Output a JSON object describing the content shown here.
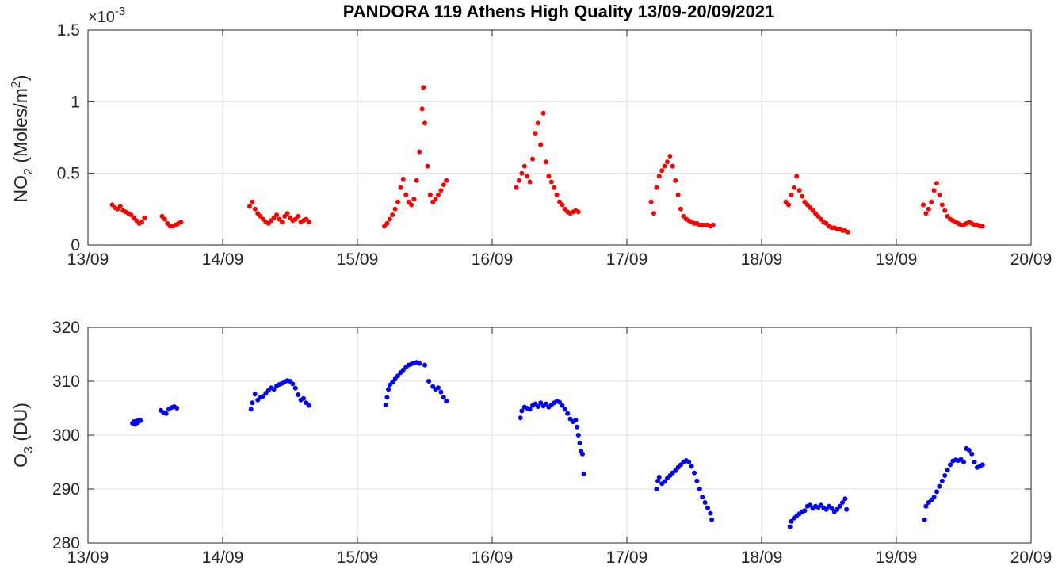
{
  "figure": {
    "title": "PANDORA 119 Athens High Quality 13/09-20/09/2021"
  },
  "chart_data": [
    {
      "type": "scatter",
      "name": "no2-panel",
      "ylabel_main": "NO",
      "ylabel_sub": "2",
      "ylabel_rest_1": " (Moles/m",
      "ylabel_sup": "2",
      "ylabel_rest_2": ")",
      "exponent_base": "×10",
      "exponent_power": "-3",
      "xlim": [
        0,
        7
      ],
      "ylim": [
        0,
        1.5
      ],
      "x_ticks": [
        0,
        1,
        2,
        3,
        4,
        5,
        6,
        7
      ],
      "x_tick_labels": [
        "13/09",
        "14/09",
        "15/09",
        "16/09",
        "17/09",
        "18/09",
        "19/09",
        "20/09"
      ],
      "y_ticks": [
        0,
        0.5,
        1,
        1.5
      ],
      "y_tick_labels": [
        "0",
        "0.5",
        "1",
        "1.5"
      ],
      "grid": true,
      "marker_color": "#ff0000",
      "x_unit": "days since 13/09/2021 00:00",
      "series_x_data_note": "x in days from 13/09 00:00; y in 1e-3 Moles/m2",
      "points": [
        [
          0.18,
          0.28
        ],
        [
          0.2,
          0.26
        ],
        [
          0.22,
          0.25
        ],
        [
          0.24,
          0.27
        ],
        [
          0.26,
          0.24
        ],
        [
          0.28,
          0.23
        ],
        [
          0.3,
          0.22
        ],
        [
          0.32,
          0.21
        ],
        [
          0.34,
          0.19
        ],
        [
          0.36,
          0.17
        ],
        [
          0.38,
          0.15
        ],
        [
          0.4,
          0.16
        ],
        [
          0.42,
          0.19
        ],
        [
          0.55,
          0.2
        ],
        [
          0.57,
          0.18
        ],
        [
          0.59,
          0.15
        ],
        [
          0.61,
          0.13
        ],
        [
          0.63,
          0.13
        ],
        [
          0.65,
          0.14
        ],
        [
          0.67,
          0.15
        ],
        [
          0.69,
          0.16
        ],
        [
          1.2,
          0.27
        ],
        [
          1.22,
          0.3
        ],
        [
          1.24,
          0.25
        ],
        [
          1.26,
          0.22
        ],
        [
          1.28,
          0.2
        ],
        [
          1.3,
          0.18
        ],
        [
          1.32,
          0.16
        ],
        [
          1.34,
          0.15
        ],
        [
          1.36,
          0.17
        ],
        [
          1.38,
          0.19
        ],
        [
          1.4,
          0.21
        ],
        [
          1.42,
          0.18
        ],
        [
          1.44,
          0.16
        ],
        [
          1.46,
          0.2
        ],
        [
          1.48,
          0.22
        ],
        [
          1.5,
          0.19
        ],
        [
          1.52,
          0.17
        ],
        [
          1.54,
          0.18
        ],
        [
          1.56,
          0.2
        ],
        [
          1.58,
          0.16
        ],
        [
          1.6,
          0.17
        ],
        [
          1.62,
          0.18
        ],
        [
          1.64,
          0.16
        ],
        [
          2.2,
          0.13
        ],
        [
          2.22,
          0.15
        ],
        [
          2.24,
          0.18
        ],
        [
          2.26,
          0.21
        ],
        [
          2.28,
          0.25
        ],
        [
          2.3,
          0.3
        ],
        [
          2.32,
          0.4
        ],
        [
          2.34,
          0.46
        ],
        [
          2.36,
          0.35
        ],
        [
          2.38,
          0.3
        ],
        [
          2.4,
          0.28
        ],
        [
          2.42,
          0.32
        ],
        [
          2.44,
          0.45
        ],
        [
          2.46,
          0.65
        ],
        [
          2.48,
          0.95
        ],
        [
          2.49,
          1.1
        ],
        [
          2.5,
          0.85
        ],
        [
          2.52,
          0.55
        ],
        [
          2.54,
          0.35
        ],
        [
          2.56,
          0.3
        ],
        [
          2.58,
          0.32
        ],
        [
          2.6,
          0.35
        ],
        [
          2.62,
          0.38
        ],
        [
          2.64,
          0.42
        ],
        [
          2.66,
          0.45
        ],
        [
          3.18,
          0.4
        ],
        [
          3.2,
          0.45
        ],
        [
          3.22,
          0.5
        ],
        [
          3.24,
          0.55
        ],
        [
          3.26,
          0.48
        ],
        [
          3.28,
          0.44
        ],
        [
          3.3,
          0.6
        ],
        [
          3.32,
          0.78
        ],
        [
          3.34,
          0.85
        ],
        [
          3.36,
          0.7
        ],
        [
          3.38,
          0.92
        ],
        [
          3.4,
          0.58
        ],
        [
          3.42,
          0.48
        ],
        [
          3.44,
          0.44
        ],
        [
          3.46,
          0.4
        ],
        [
          3.48,
          0.35
        ],
        [
          3.5,
          0.3
        ],
        [
          3.52,
          0.28
        ],
        [
          3.54,
          0.25
        ],
        [
          3.56,
          0.23
        ],
        [
          3.58,
          0.22
        ],
        [
          3.6,
          0.23
        ],
        [
          3.62,
          0.24
        ],
        [
          3.64,
          0.23
        ],
        [
          4.18,
          0.3
        ],
        [
          4.2,
          0.22
        ],
        [
          4.22,
          0.4
        ],
        [
          4.24,
          0.48
        ],
        [
          4.26,
          0.52
        ],
        [
          4.28,
          0.55
        ],
        [
          4.3,
          0.58
        ],
        [
          4.32,
          0.62
        ],
        [
          4.34,
          0.55
        ],
        [
          4.36,
          0.45
        ],
        [
          4.38,
          0.35
        ],
        [
          4.4,
          0.25
        ],
        [
          4.42,
          0.2
        ],
        [
          4.44,
          0.18
        ],
        [
          4.46,
          0.17
        ],
        [
          4.48,
          0.16
        ],
        [
          4.5,
          0.15
        ],
        [
          4.52,
          0.15
        ],
        [
          4.54,
          0.14
        ],
        [
          4.56,
          0.14
        ],
        [
          4.58,
          0.14
        ],
        [
          4.6,
          0.14
        ],
        [
          4.62,
          0.13
        ],
        [
          4.64,
          0.14
        ],
        [
          5.18,
          0.3
        ],
        [
          5.2,
          0.28
        ],
        [
          5.22,
          0.35
        ],
        [
          5.24,
          0.4
        ],
        [
          5.26,
          0.48
        ],
        [
          5.28,
          0.38
        ],
        [
          5.3,
          0.34
        ],
        [
          5.32,
          0.3
        ],
        [
          5.34,
          0.28
        ],
        [
          5.36,
          0.26
        ],
        [
          5.38,
          0.24
        ],
        [
          5.4,
          0.22
        ],
        [
          5.42,
          0.2
        ],
        [
          5.44,
          0.18
        ],
        [
          5.46,
          0.16
        ],
        [
          5.48,
          0.15
        ],
        [
          5.5,
          0.13
        ],
        [
          5.52,
          0.12
        ],
        [
          5.54,
          0.12
        ],
        [
          5.56,
          0.11
        ],
        [
          5.58,
          0.11
        ],
        [
          5.6,
          0.1
        ],
        [
          5.62,
          0.1
        ],
        [
          5.64,
          0.09
        ],
        [
          6.2,
          0.28
        ],
        [
          6.22,
          0.22
        ],
        [
          6.24,
          0.25
        ],
        [
          6.26,
          0.3
        ],
        [
          6.28,
          0.38
        ],
        [
          6.3,
          0.43
        ],
        [
          6.32,
          0.35
        ],
        [
          6.34,
          0.28
        ],
        [
          6.36,
          0.24
        ],
        [
          6.38,
          0.2
        ],
        [
          6.4,
          0.18
        ],
        [
          6.42,
          0.17
        ],
        [
          6.44,
          0.16
        ],
        [
          6.46,
          0.15
        ],
        [
          6.48,
          0.14
        ],
        [
          6.5,
          0.14
        ],
        [
          6.52,
          0.15
        ],
        [
          6.54,
          0.16
        ],
        [
          6.56,
          0.15
        ],
        [
          6.58,
          0.14
        ],
        [
          6.6,
          0.14
        ],
        [
          6.62,
          0.13
        ],
        [
          6.64,
          0.13
        ]
      ]
    },
    {
      "type": "scatter",
      "name": "o3-panel",
      "ylabel_main": "O",
      "ylabel_sub": "3",
      "ylabel_rest_1": " (DU)",
      "ylabel_sup": "",
      "ylabel_rest_2": "",
      "xlim": [
        0,
        7
      ],
      "ylim": [
        280,
        320
      ],
      "x_ticks": [
        0,
        1,
        2,
        3,
        4,
        5,
        6,
        7
      ],
      "x_tick_labels": [
        "13/09",
        "14/09",
        "15/09",
        "16/09",
        "17/09",
        "18/09",
        "19/09",
        "20/09"
      ],
      "y_ticks": [
        280,
        290,
        300,
        310,
        320
      ],
      "y_tick_labels": [
        "280",
        "290",
        "300",
        "310",
        "320"
      ],
      "grid": true,
      "marker_color": "#0000ff",
      "points": [
        [
          0.33,
          302.2
        ],
        [
          0.34,
          302.5
        ],
        [
          0.35,
          302.0
        ],
        [
          0.36,
          302.6
        ],
        [
          0.37,
          302.3
        ],
        [
          0.38,
          302.8
        ],
        [
          0.39,
          302.7
        ],
        [
          0.54,
          304.6
        ],
        [
          0.56,
          304.2
        ],
        [
          0.58,
          304.0
        ],
        [
          0.6,
          304.8
        ],
        [
          0.62,
          305.1
        ],
        [
          0.64,
          305.3
        ],
        [
          0.66,
          305.0
        ],
        [
          1.21,
          304.8
        ],
        [
          1.22,
          306.0
        ],
        [
          1.24,
          307.6
        ],
        [
          1.26,
          306.5
        ],
        [
          1.28,
          307.0
        ],
        [
          1.3,
          307.2
        ],
        [
          1.32,
          307.8
        ],
        [
          1.34,
          308.3
        ],
        [
          1.36,
          308.8
        ],
        [
          1.38,
          308.5
        ],
        [
          1.4,
          309.1
        ],
        [
          1.42,
          309.4
        ],
        [
          1.44,
          309.6
        ],
        [
          1.46,
          309.9
        ],
        [
          1.48,
          310.1
        ],
        [
          1.5,
          310.0
        ],
        [
          1.52,
          309.5
        ],
        [
          1.54,
          308.7
        ],
        [
          1.56,
          307.5
        ],
        [
          1.58,
          306.5
        ],
        [
          1.6,
          306.8
        ],
        [
          1.62,
          306.0
        ],
        [
          1.64,
          305.5
        ],
        [
          2.21,
          305.6
        ],
        [
          2.22,
          307.0
        ],
        [
          2.23,
          308.5
        ],
        [
          2.24,
          309.3
        ],
        [
          2.26,
          309.8
        ],
        [
          2.28,
          310.4
        ],
        [
          2.3,
          311.0
        ],
        [
          2.32,
          311.6
        ],
        [
          2.34,
          312.1
        ],
        [
          2.36,
          312.6
        ],
        [
          2.38,
          313.0
        ],
        [
          2.4,
          313.2
        ],
        [
          2.42,
          313.4
        ],
        [
          2.44,
          313.5
        ],
        [
          2.46,
          313.3
        ],
        [
          2.5,
          313.0
        ],
        [
          2.53,
          310.0
        ],
        [
          2.56,
          309.0
        ],
        [
          2.58,
          308.5
        ],
        [
          2.6,
          308.8
        ],
        [
          2.62,
          308.0
        ],
        [
          2.64,
          307.0
        ],
        [
          2.66,
          306.3
        ],
        [
          3.21,
          303.2
        ],
        [
          3.22,
          304.5
        ],
        [
          3.24,
          305.2
        ],
        [
          3.26,
          305.0
        ],
        [
          3.28,
          304.8
        ],
        [
          3.3,
          305.5
        ],
        [
          3.32,
          305.8
        ],
        [
          3.34,
          305.3
        ],
        [
          3.36,
          306.0
        ],
        [
          3.38,
          305.4
        ],
        [
          3.4,
          305.8
        ],
        [
          3.42,
          305.2
        ],
        [
          3.44,
          305.6
        ],
        [
          3.46,
          306.0
        ],
        [
          3.48,
          306.3
        ],
        [
          3.5,
          306.1
        ],
        [
          3.52,
          305.5
        ],
        [
          3.54,
          304.8
        ],
        [
          3.56,
          304.0
        ],
        [
          3.58,
          303.0
        ],
        [
          3.6,
          302.5
        ],
        [
          3.62,
          302.8
        ],
        [
          3.63,
          301.5
        ],
        [
          3.64,
          300.0
        ],
        [
          3.65,
          298.5
        ],
        [
          3.66,
          297.0
        ],
        [
          3.67,
          296.5
        ],
        [
          3.68,
          292.8
        ],
        [
          4.22,
          290.0
        ],
        [
          4.23,
          291.5
        ],
        [
          4.24,
          292.2
        ],
        [
          4.26,
          291.0
        ],
        [
          4.28,
          291.4
        ],
        [
          4.3,
          292.0
        ],
        [
          4.32,
          292.5
        ],
        [
          4.34,
          293.0
        ],
        [
          4.36,
          293.4
        ],
        [
          4.38,
          294.0
        ],
        [
          4.4,
          294.5
        ],
        [
          4.42,
          295.0
        ],
        [
          4.44,
          295.3
        ],
        [
          4.46,
          295.0
        ],
        [
          4.48,
          294.2
        ],
        [
          4.5,
          293.0
        ],
        [
          4.52,
          291.5
        ],
        [
          4.54,
          290.0
        ],
        [
          4.56,
          288.5
        ],
        [
          4.58,
          287.5
        ],
        [
          4.6,
          286.5
        ],
        [
          4.62,
          285.5
        ],
        [
          4.63,
          284.3
        ],
        [
          5.21,
          283.0
        ],
        [
          5.22,
          284.0
        ],
        [
          5.24,
          284.6
        ],
        [
          5.26,
          285.0
        ],
        [
          5.28,
          285.4
        ],
        [
          5.3,
          285.8
        ],
        [
          5.32,
          286.0
        ],
        [
          5.34,
          286.8
        ],
        [
          5.36,
          287.0
        ],
        [
          5.38,
          286.4
        ],
        [
          5.4,
          286.8
        ],
        [
          5.42,
          286.6
        ],
        [
          5.44,
          287.0
        ],
        [
          5.46,
          286.5
        ],
        [
          5.48,
          286.2
        ],
        [
          5.5,
          286.8
        ],
        [
          5.52,
          286.4
        ],
        [
          5.54,
          285.8
        ],
        [
          5.56,
          286.2
        ],
        [
          5.58,
          286.8
        ],
        [
          5.6,
          287.5
        ],
        [
          5.62,
          288.2
        ],
        [
          5.63,
          286.2
        ],
        [
          6.21,
          284.3
        ],
        [
          6.22,
          286.8
        ],
        [
          6.24,
          287.5
        ],
        [
          6.26,
          288.0
        ],
        [
          6.28,
          288.5
        ],
        [
          6.3,
          289.5
        ],
        [
          6.32,
          290.5
        ],
        [
          6.34,
          291.5
        ],
        [
          6.36,
          292.5
        ],
        [
          6.38,
          293.5
        ],
        [
          6.4,
          294.5
        ],
        [
          6.42,
          295.2
        ],
        [
          6.44,
          295.4
        ],
        [
          6.46,
          295.3
        ],
        [
          6.48,
          295.5
        ],
        [
          6.5,
          295.0
        ],
        [
          6.52,
          297.5
        ],
        [
          6.54,
          297.2
        ],
        [
          6.56,
          296.5
        ],
        [
          6.58,
          295.0
        ],
        [
          6.6,
          294.0
        ],
        [
          6.62,
          294.2
        ],
        [
          6.64,
          294.5
        ]
      ]
    }
  ]
}
